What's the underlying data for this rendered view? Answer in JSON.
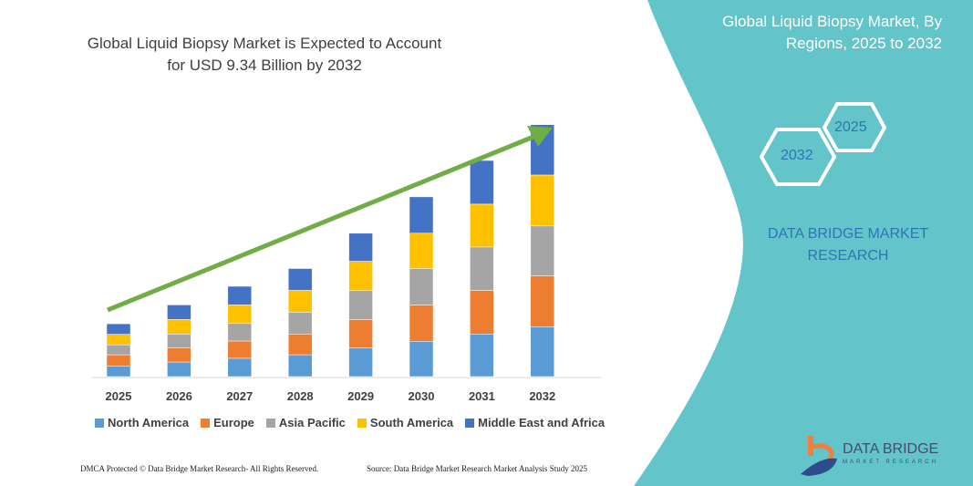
{
  "header": {
    "title": "Global Liquid Biopsy Market is Expected to Account for USD 9.34 Billion by 2032",
    "panel_title": "Global Liquid Biopsy Market, By Regions, 2025 to 2032",
    "hex_left": "2032",
    "hex_right": "2025",
    "brand": "DATA BRIDGE MARKET RESEARCH"
  },
  "logo": {
    "name": "DATA BRIDGE",
    "sub": "MARKET RESEARCH"
  },
  "footer": {
    "left": "DMCA Protected © Data Bridge Market Research- All Rights Reserved.",
    "right": "Source: Data Bridge Market Research Market Analysis Study 2025"
  },
  "colors": {
    "panel": "#63c5ca",
    "arrow": "#70ad47"
  },
  "chart_data": {
    "type": "bar",
    "stacked": true,
    "title": "Global Liquid Biopsy Market is Expected to Account for USD 9.34 Billion by 2032",
    "xlabel": "",
    "ylabel": "",
    "grid": false,
    "legend": "bottom",
    "categories": [
      "2025",
      "2026",
      "2027",
      "2028",
      "2029",
      "2030",
      "2031",
      "2032"
    ],
    "series": [
      {
        "name": "North America",
        "color": "#5b9bd5",
        "values": [
          0.39,
          0.54,
          0.68,
          0.81,
          1.07,
          1.31,
          1.58,
          1.85
        ]
      },
      {
        "name": "Europe",
        "color": "#ed7d31",
        "values": [
          0.42,
          0.53,
          0.64,
          0.77,
          1.05,
          1.35,
          1.62,
          1.89
        ]
      },
      {
        "name": "Asia Pacific",
        "color": "#a5a5a5",
        "values": [
          0.37,
          0.51,
          0.65,
          0.81,
          1.07,
          1.35,
          1.61,
          1.85
        ]
      },
      {
        "name": "South America",
        "color": "#ffc000",
        "values": [
          0.39,
          0.54,
          0.69,
          0.81,
          1.09,
          1.31,
          1.59,
          1.89
        ]
      },
      {
        "name": "Middle East and Africa",
        "color": "#4472c4",
        "values": [
          0.39,
          0.54,
          0.69,
          0.81,
          1.04,
          1.35,
          1.62,
          1.87
        ]
      }
    ],
    "ylim": [
      0,
      9.34
    ]
  }
}
